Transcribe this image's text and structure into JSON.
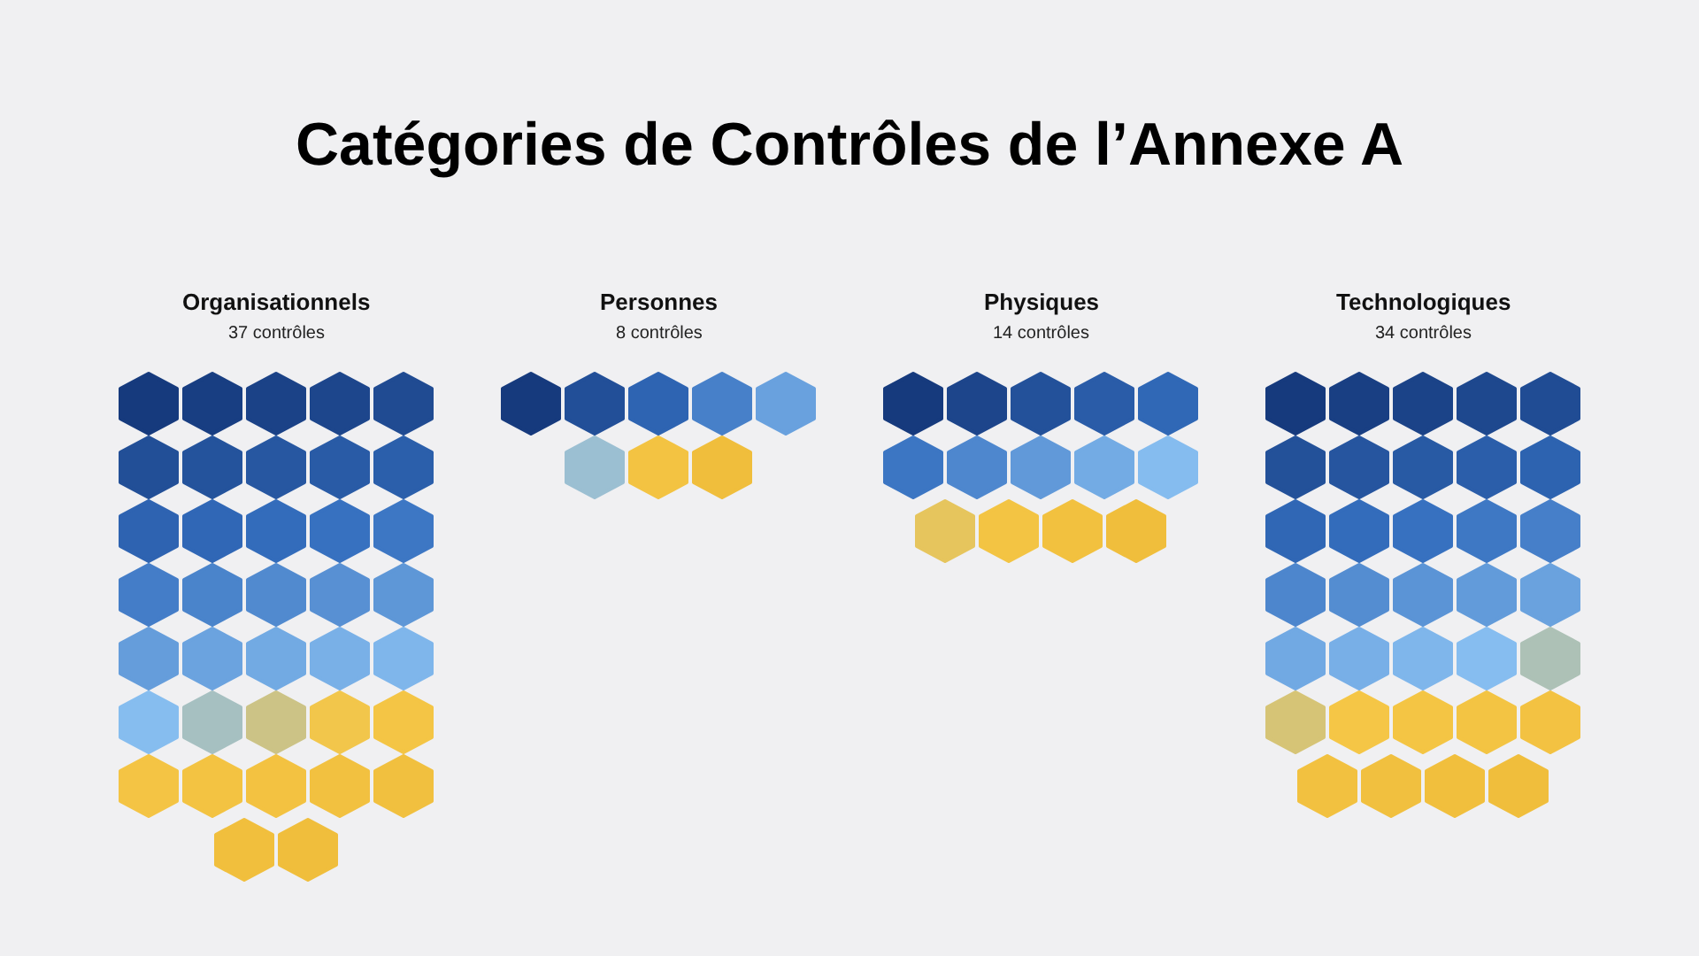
{
  "chart_data": {
    "type": "other",
    "title": "Catégories de Contrôles de l’Annexe A",
    "categories": [
      "Organisationnels",
      "Personnes",
      "Physiques",
      "Technologiques"
    ],
    "values": [
      37,
      8,
      14,
      34
    ],
    "value_labels": [
      "37 contrôles",
      "8 contrôles",
      "14 contrôles",
      "34 contrôles"
    ]
  }
}
